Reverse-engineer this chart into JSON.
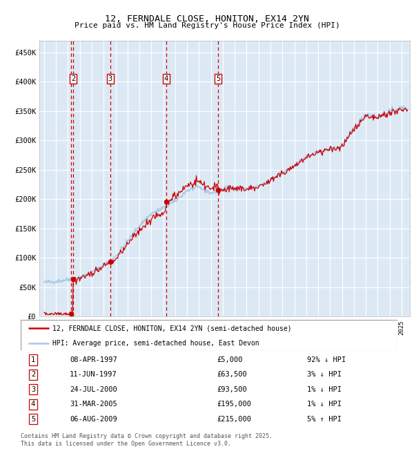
{
  "title1": "12, FERNDALE CLOSE, HONITON, EX14 2YN",
  "title2": "Price paid vs. HM Land Registry's House Price Index (HPI)",
  "plot_bg_color": "#dce9f5",
  "red_line_color": "#cc0000",
  "blue_line_color": "#a8c8e8",
  "grid_color": "#ffffff",
  "ylim": [
    0,
    470000
  ],
  "yticks": [
    0,
    50000,
    100000,
    150000,
    200000,
    250000,
    300000,
    350000,
    400000,
    450000
  ],
  "ytick_labels": [
    "£0",
    "£50K",
    "£100K",
    "£150K",
    "£200K",
    "£250K",
    "£300K",
    "£350K",
    "£400K",
    "£450K"
  ],
  "sale_events": [
    {
      "num": 1,
      "date": "08-APR-1997",
      "price": 5000,
      "year": 1997.27,
      "hpi_pct": "92% ↓ HPI"
    },
    {
      "num": 2,
      "date": "11-JUN-1997",
      "price": 63500,
      "year": 1997.45,
      "hpi_pct": "3% ↓ HPI"
    },
    {
      "num": 3,
      "date": "24-JUL-2000",
      "price": 93500,
      "year": 2000.56,
      "hpi_pct": "1% ↓ HPI"
    },
    {
      "num": 4,
      "date": "31-MAR-2005",
      "price": 195000,
      "year": 2005.25,
      "hpi_pct": "1% ↓ HPI"
    },
    {
      "num": 5,
      "date": "06-AUG-2009",
      "price": 215000,
      "year": 2009.6,
      "hpi_pct": "5% ↑ HPI"
    }
  ],
  "legend_line1": "12, FERNDALE CLOSE, HONITON, EX14 2YN (semi-detached house)",
  "legend_line2": "HPI: Average price, semi-detached house, East Devon",
  "footer": "Contains HM Land Registry data © Crown copyright and database right 2025.\nThis data is licensed under the Open Government Licence v3.0.",
  "table_rows": [
    [
      "1",
      "08-APR-1997",
      "£5,000",
      "92% ↓ HPI"
    ],
    [
      "2",
      "11-JUN-1997",
      "£63,500",
      "3% ↓ HPI"
    ],
    [
      "3",
      "24-JUL-2000",
      "£93,500",
      "1% ↓ HPI"
    ],
    [
      "4",
      "31-MAR-2005",
      "£195,000",
      "1% ↓ HPI"
    ],
    [
      "5",
      "06-AUG-2009",
      "£215,000",
      "5% ↑ HPI"
    ]
  ]
}
